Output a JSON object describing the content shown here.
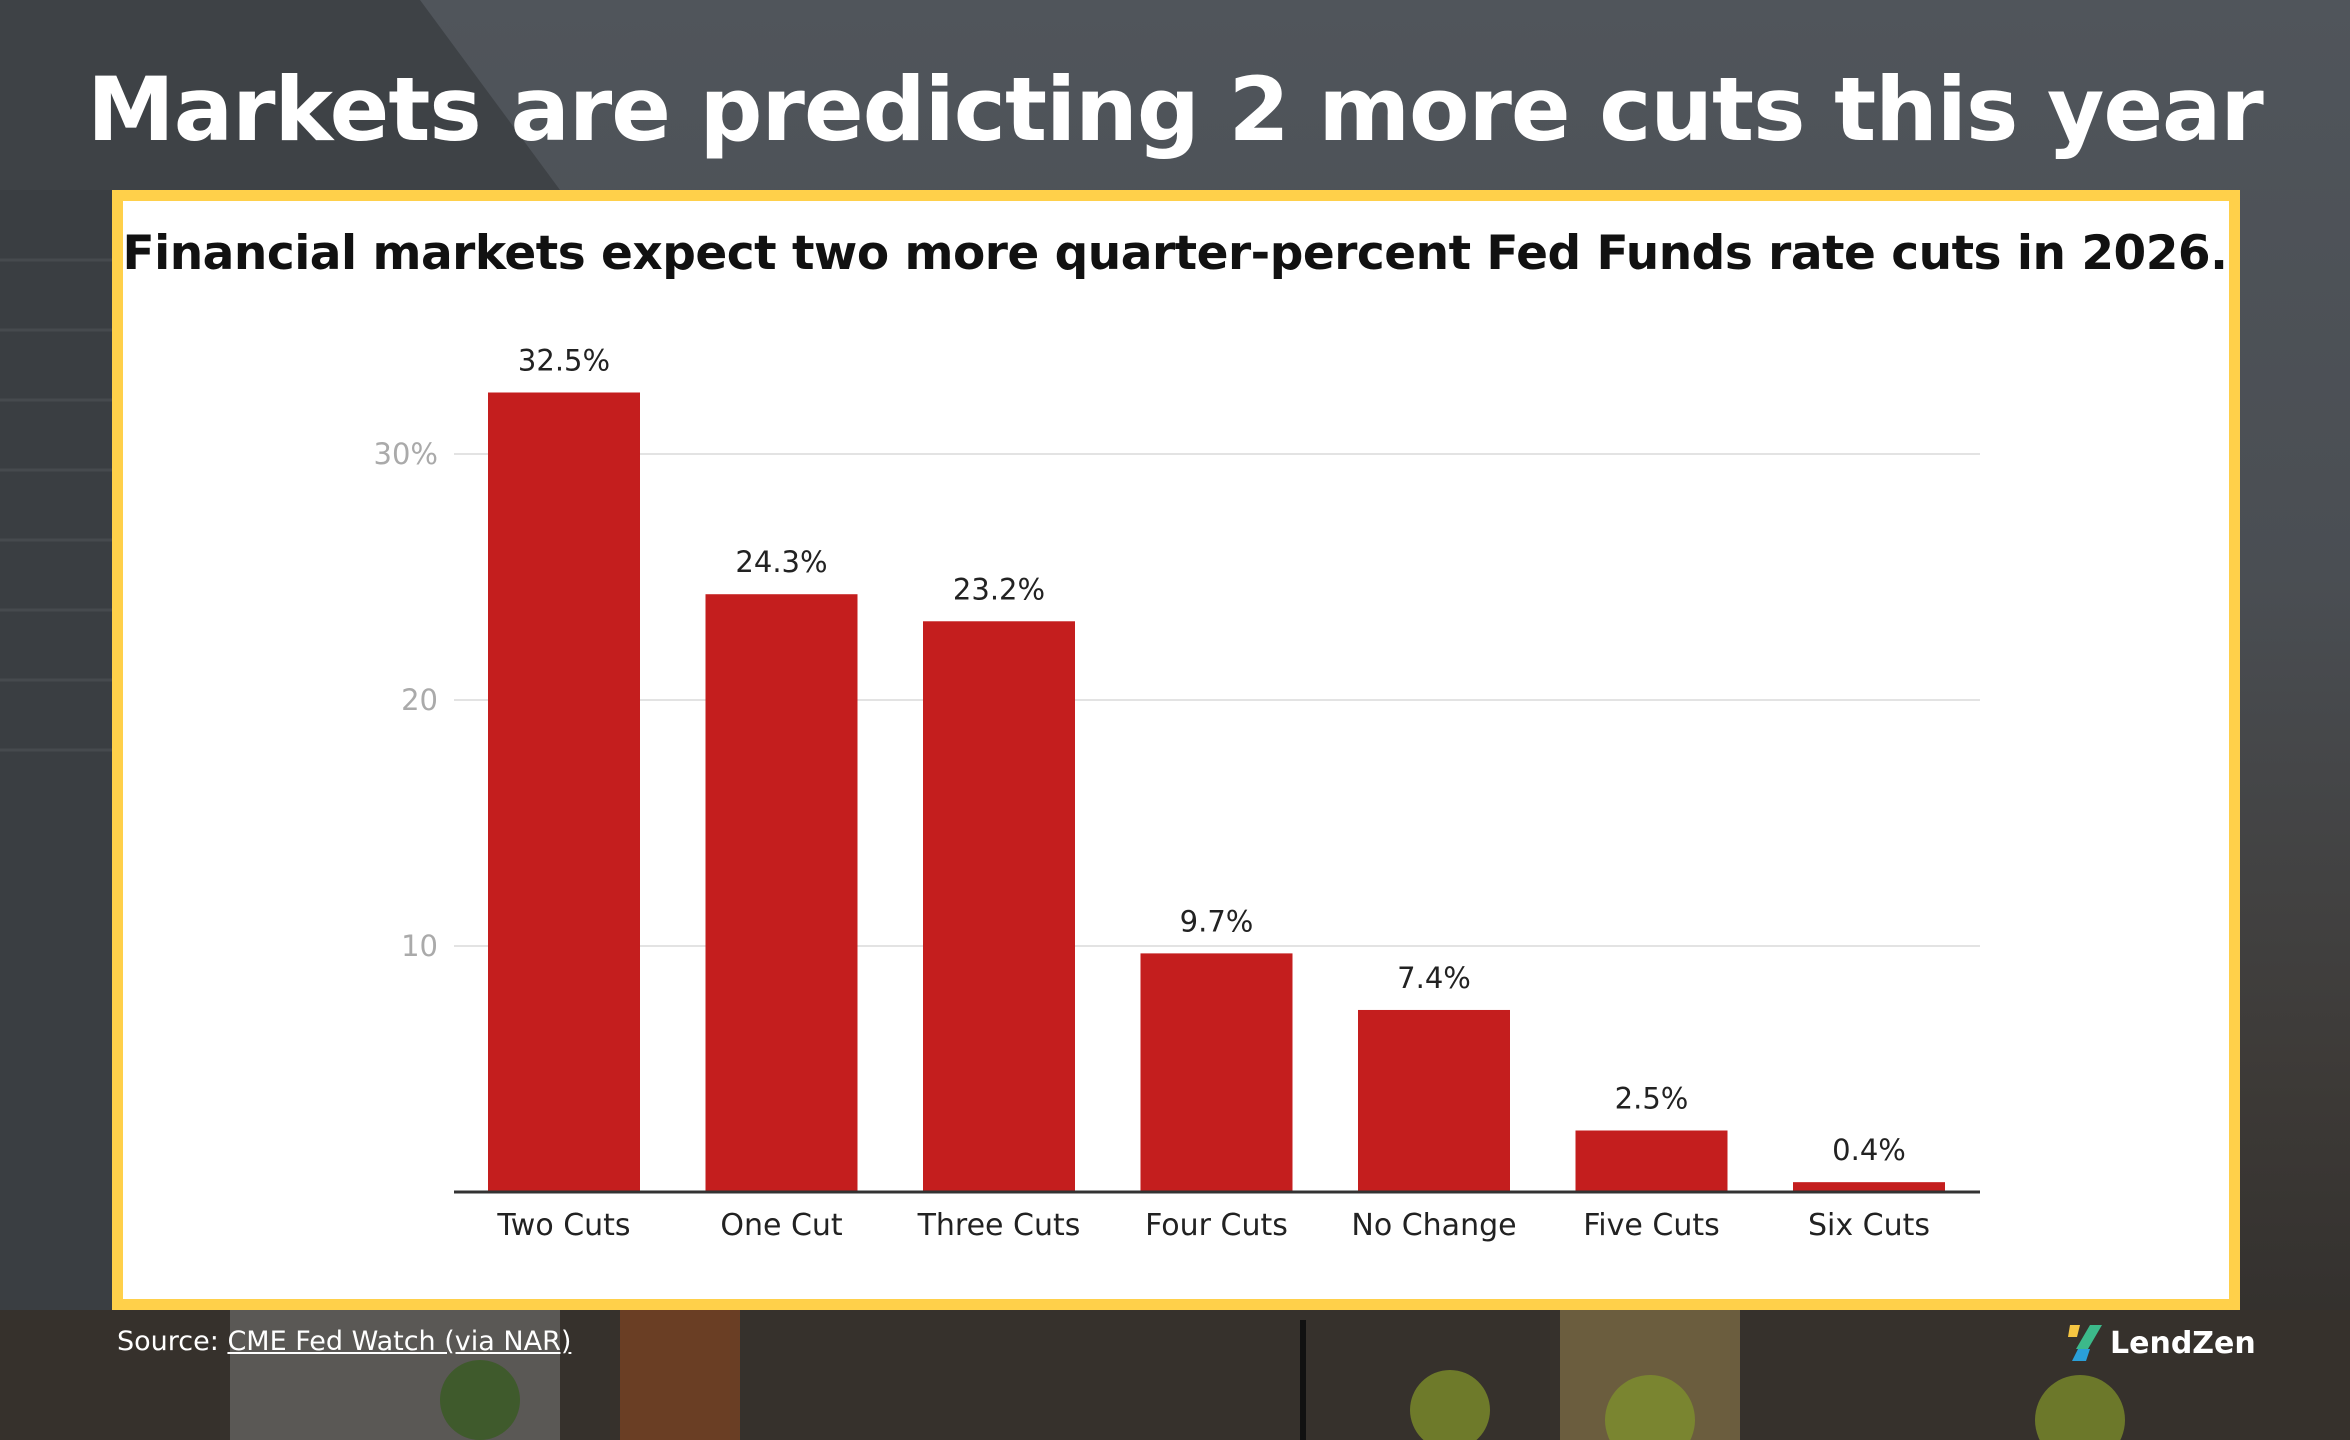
{
  "title": "Markets are predicting 2 more cuts this year",
  "source": {
    "prefix": "Source:",
    "link": "CME Fed Watch (via NAR)"
  },
  "brand": {
    "name": "LendZen"
  },
  "colors": {
    "bar": "#c41e1e",
    "frame": "#ffd04a",
    "grid": "#e3e3e3"
  },
  "chart_data": {
    "type": "bar",
    "title": "Financial markets expect two more quarter-percent Fed Funds rate cuts in 2026.",
    "categories": [
      "Two Cuts",
      "One Cut",
      "Three Cuts",
      "Four Cuts",
      "No Change",
      "Five Cuts",
      "Six Cuts"
    ],
    "values": [
      32.5,
      24.3,
      23.2,
      9.7,
      7.4,
      2.5,
      0.4
    ],
    "data_labels": [
      "32.5%",
      "24.3%",
      "23.2%",
      "9.7%",
      "7.4%",
      "2.5%",
      "0.4%"
    ],
    "yticks": [
      10,
      20,
      30
    ],
    "ytick_labels": [
      "10",
      "20",
      "30%"
    ],
    "ylim": [
      0,
      35
    ],
    "grid": true,
    "xlabel": "",
    "ylabel": ""
  }
}
